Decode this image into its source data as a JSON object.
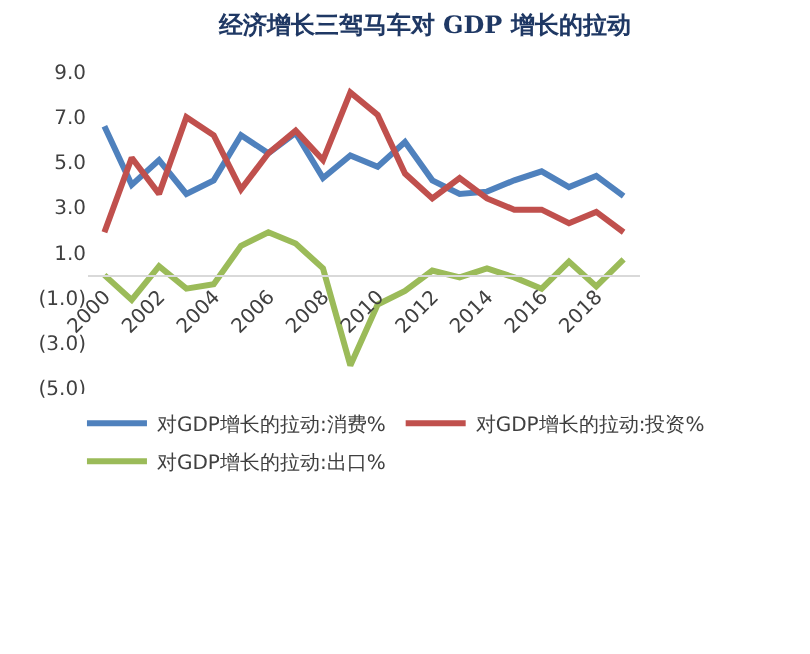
{
  "chart_data": {
    "type": "line",
    "title": "经济增长三驾马车对 GDP 增长的拉动",
    "categories": [
      "2000",
      null,
      "2002",
      null,
      "2004",
      null,
      "2006",
      null,
      "2008",
      null,
      "2010",
      null,
      "2012",
      null,
      "2014",
      null,
      "2016",
      null,
      "2018",
      null
    ],
    "series": [
      {
        "name": "对GDP增长的拉动:消费%",
        "color": "#4f81bd",
        "values": [
          6.6,
          4.0,
          5.1,
          3.6,
          4.2,
          6.2,
          5.4,
          6.3,
          4.3,
          5.3,
          4.8,
          5.9,
          4.2,
          3.6,
          3.7,
          4.2,
          4.6,
          3.9,
          4.4,
          3.5
        ]
      },
      {
        "name": "对GDP增长的拉动:投资%",
        "color": "#c0504d",
        "values": [
          1.9,
          5.2,
          3.6,
          7.0,
          6.2,
          3.8,
          5.4,
          6.4,
          5.1,
          8.1,
          7.1,
          4.5,
          3.4,
          4.3,
          3.4,
          2.9,
          2.9,
          2.3,
          2.8,
          1.9
        ]
      },
      {
        "name": "对GDP增长的拉动:出口%",
        "color": "#9bbb59",
        "values": [
          0.0,
          -1.1,
          0.4,
          -0.6,
          -0.4,
          1.3,
          1.9,
          1.4,
          0.3,
          -4.0,
          -1.3,
          -0.7,
          0.2,
          -0.1,
          0.3,
          -0.1,
          -0.6,
          0.6,
          -0.5,
          0.7
        ]
      }
    ],
    "ylim": [
      -5,
      9
    ],
    "yticks": [
      {
        "value": 9,
        "label": "9.0"
      },
      {
        "value": 7,
        "label": "7.0"
      },
      {
        "value": 5,
        "label": "5.0"
      },
      {
        "value": 3,
        "label": "3.0"
      },
      {
        "value": 1,
        "label": "1.0"
      },
      {
        "value": -1,
        "label": "(1.0)"
      },
      {
        "value": -3,
        "label": "(3.0)"
      },
      {
        "value": -5,
        "label": "(5.0)"
      }
    ],
    "grid": false,
    "legend": "bottom",
    "marker": "none",
    "line_style": "solid"
  }
}
